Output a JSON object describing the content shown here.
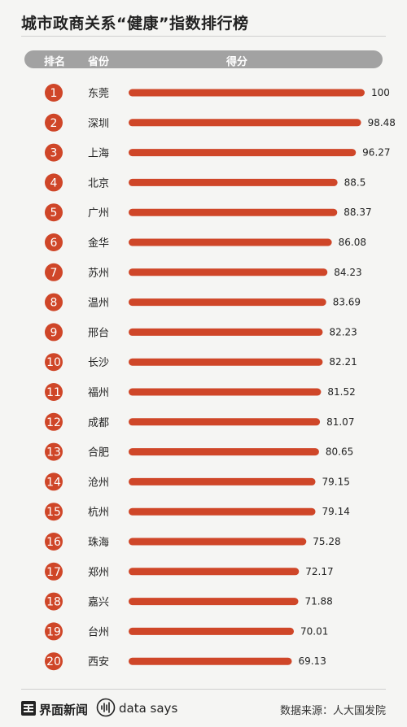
{
  "title": "城市政商关系“健康”指数排行榜",
  "header": {
    "rank": "排名",
    "province": "省份",
    "score": "得分"
  },
  "colors": {
    "accent": "#cf4628",
    "header_bg": "#a2a2a2",
    "background": "#f5f5f3"
  },
  "chart_data": {
    "type": "bar",
    "orientation": "horizontal",
    "title": "城市政商关系“健康”指数排行榜",
    "xlim": [
      0,
      100
    ],
    "grid": false,
    "categories": [
      "东莞",
      "深圳",
      "上海",
      "北京",
      "广州",
      "金华",
      "苏州",
      "温州",
      "邢台",
      "长沙",
      "福州",
      "成都",
      "合肥",
      "沧州",
      "杭州",
      "珠海",
      "郑州",
      "嘉兴",
      "台州",
      "西安"
    ],
    "ranks": [
      "1",
      "2",
      "3",
      "4",
      "5",
      "6",
      "7",
      "8",
      "9",
      "10",
      "11",
      "12",
      "13",
      "14",
      "15",
      "16",
      "17",
      "18",
      "19",
      "20"
    ],
    "values": [
      100,
      98.48,
      96.27,
      88.5,
      88.37,
      86.08,
      84.23,
      83.69,
      82.23,
      82.21,
      81.52,
      81.07,
      80.65,
      79.15,
      79.14,
      75.28,
      72.17,
      71.88,
      70.01,
      69.13
    ],
    "value_labels": [
      "100",
      "98.48",
      "96.27",
      "88.5",
      "88.37",
      "86.08",
      "84.23",
      "83.69",
      "82.23",
      "82.21",
      "81.52",
      "81.07",
      "80.65",
      "79.15",
      "79.14",
      "75.28",
      "72.17",
      "71.88",
      "70.01",
      "69.13"
    ]
  },
  "footer": {
    "brand": "界面新闻",
    "brand_icon": "jiemian-logo-icon",
    "datasays": "data says",
    "datasays_icon": "soundwave-icon",
    "source": "数据来源：人大国发院"
  }
}
